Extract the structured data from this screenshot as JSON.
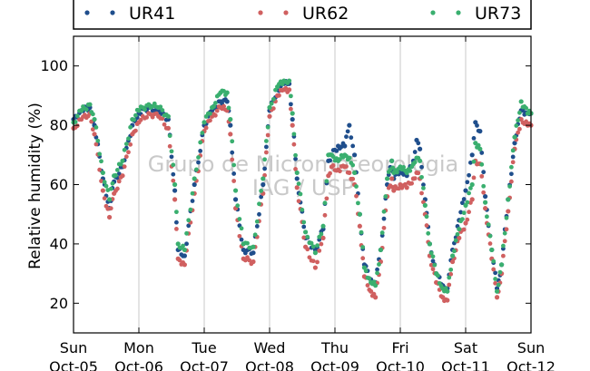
{
  "chart_data": {
    "type": "scatter",
    "title": "",
    "xlabel": "",
    "ylabel": "Relative humidity (%)",
    "ylim": [
      10,
      110
    ],
    "yticks": [
      20,
      40,
      60,
      80,
      100
    ],
    "xlim": [
      0,
      7
    ],
    "xticks": [
      {
        "x": 0,
        "day": "Sun",
        "date": "Oct-05"
      },
      {
        "x": 1,
        "day": "Mon",
        "date": "Oct-06"
      },
      {
        "x": 2,
        "day": "Tue",
        "date": "Oct-07"
      },
      {
        "x": 3,
        "day": "Wed",
        "date": "Oct-08"
      },
      {
        "x": 4,
        "day": "Thu",
        "date": "Oct-09"
      },
      {
        "x": 5,
        "day": "Fri",
        "date": "Oct-10"
      },
      {
        "x": 6,
        "day": "Sat",
        "date": "Oct-11"
      },
      {
        "x": 7,
        "day": "Sun",
        "date": "Oct-12"
      }
    ],
    "grid": "vertical",
    "legend_position": "top",
    "watermark": [
      "Grupo de Micrometeorologia",
      "IAG / USP"
    ],
    "series": [
      {
        "name": "UR41",
        "color": "#1f4e8c",
        "x": [
          0.0,
          0.12,
          0.25,
          0.32,
          0.45,
          0.55,
          0.62,
          0.75,
          0.9,
          1.0,
          1.15,
          1.3,
          1.45,
          1.55,
          1.6,
          1.7,
          1.85,
          2.0,
          2.12,
          2.25,
          2.35,
          2.4,
          2.48,
          2.6,
          2.75,
          2.9,
          3.0,
          3.12,
          3.22,
          3.3,
          3.35,
          3.42,
          3.55,
          3.7,
          3.82,
          3.9,
          3.95,
          4.05,
          4.15,
          4.22,
          4.3,
          4.38,
          4.45,
          4.55,
          4.62,
          4.7,
          4.8,
          4.87,
          4.9,
          5.0,
          5.1,
          5.2,
          5.25,
          5.3,
          5.38,
          5.45,
          5.55,
          5.65,
          5.72,
          5.8,
          5.9,
          6.0,
          6.1,
          6.15,
          6.22,
          6.3,
          6.4,
          6.48,
          6.55,
          6.65,
          6.75,
          6.85,
          6.95,
          7.0
        ],
        "y": [
          82,
          85,
          86,
          80,
          62,
          52,
          61,
          66,
          80,
          84,
          86,
          85,
          82,
          58,
          38,
          36,
          60,
          80,
          85,
          88,
          88,
          80,
          55,
          38,
          37,
          60,
          85,
          92,
          94,
          94,
          82,
          62,
          42,
          38,
          45,
          68,
          70,
          73,
          73,
          80,
          70,
          50,
          33,
          28,
          27,
          38,
          60,
          68,
          62,
          65,
          63,
          68,
          75,
          72,
          55,
          40,
          30,
          26,
          25,
          38,
          48,
          58,
          70,
          81,
          78,
          56,
          38,
          25,
          33,
          55,
          74,
          85,
          84,
          84
        ]
      },
      {
        "name": "UR62",
        "color": "#d06060",
        "x": [
          0.0,
          0.12,
          0.25,
          0.32,
          0.45,
          0.55,
          0.62,
          0.75,
          0.9,
          1.0,
          1.15,
          1.3,
          1.45,
          1.55,
          1.6,
          1.7,
          1.85,
          2.0,
          2.12,
          2.25,
          2.35,
          2.4,
          2.48,
          2.6,
          2.75,
          2.9,
          3.0,
          3.12,
          3.22,
          3.3,
          3.35,
          3.42,
          3.55,
          3.7,
          3.82,
          3.9,
          3.95,
          4.05,
          4.15,
          4.22,
          4.3,
          4.38,
          4.45,
          4.55,
          4.62,
          4.7,
          4.8,
          4.87,
          4.9,
          5.0,
          5.1,
          5.2,
          5.25,
          5.3,
          5.38,
          5.45,
          5.55,
          5.65,
          5.72,
          5.8,
          5.9,
          6.0,
          6.1,
          6.15,
          6.22,
          6.3,
          6.4,
          6.48,
          6.55,
          6.65,
          6.75,
          6.85,
          6.95,
          7.0
        ],
        "y": [
          79,
          82,
          84,
          77,
          58,
          49,
          57,
          63,
          77,
          81,
          84,
          83,
          79,
          55,
          35,
          33,
          57,
          78,
          83,
          86,
          85,
          77,
          52,
          35,
          34,
          57,
          83,
          90,
          92,
          92,
          80,
          59,
          39,
          32,
          42,
          63,
          66,
          65,
          66,
          64,
          60,
          46,
          29,
          24,
          22,
          34,
          56,
          62,
          58,
          60,
          59,
          62,
          64,
          62,
          50,
          36,
          27,
          22,
          21,
          34,
          42,
          47,
          55,
          68,
          67,
          52,
          35,
          22,
          30,
          51,
          72,
          82,
          80,
          80
        ]
      },
      {
        "name": "UR73",
        "color": "#3aaf6f",
        "x": [
          0.0,
          0.12,
          0.25,
          0.32,
          0.45,
          0.55,
          0.62,
          0.75,
          0.9,
          1.0,
          1.15,
          1.3,
          1.45,
          1.55,
          1.6,
          1.7,
          1.85,
          2.0,
          2.12,
          2.25,
          2.35,
          2.4,
          2.48,
          2.6,
          2.75,
          2.9,
          3.0,
          3.12,
          3.22,
          3.3,
          3.35,
          3.42,
          3.55,
          3.7,
          3.82,
          3.9,
          3.95,
          4.05,
          4.15,
          4.22,
          4.3,
          4.38,
          4.45,
          4.55,
          4.62,
          4.7,
          4.8,
          4.87,
          4.9,
          5.0,
          5.1,
          5.2,
          5.25,
          5.3,
          5.38,
          5.45,
          5.55,
          5.65,
          5.72,
          5.8,
          5.9,
          6.0,
          6.1,
          6.15,
          6.22,
          6.3,
          6.4,
          6.48,
          6.55,
          6.65,
          6.75,
          6.85,
          6.95,
          7.0
        ],
        "y": [
          81,
          85,
          87,
          82,
          64,
          55,
          63,
          68,
          82,
          85,
          87,
          86,
          83,
          60,
          40,
          38,
          62,
          81,
          86,
          91,
          91,
          82,
          58,
          40,
          39,
          62,
          86,
          93,
          95,
          95,
          84,
          64,
          44,
          37,
          46,
          70,
          70,
          68,
          70,
          69,
          64,
          50,
          32,
          27,
          26,
          38,
          62,
          68,
          64,
          66,
          64,
          67,
          69,
          68,
          53,
          40,
          30,
          25,
          24,
          36,
          45,
          53,
          60,
          74,
          72,
          54,
          38,
          24,
          33,
          55,
          76,
          88,
          84,
          84
        ]
      }
    ]
  }
}
